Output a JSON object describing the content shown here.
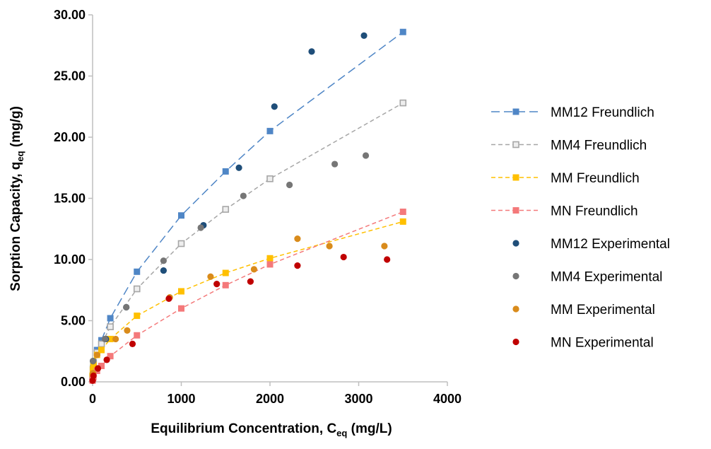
{
  "chart_data": {
    "type": "scatter",
    "xlim": [
      0,
      4000
    ],
    "ylim": [
      0,
      30
    ],
    "xticks": [
      0,
      1000,
      2000,
      3000,
      4000
    ],
    "xtick_labels": [
      "0",
      "1000",
      "2000",
      "3000",
      "4000"
    ],
    "yticks": [
      0,
      5,
      10,
      15,
      20,
      25,
      30
    ],
    "ytick_labels": [
      "0.00",
      "5.00",
      "10.00",
      "15.00",
      "20.00",
      "25.00",
      "30.00"
    ],
    "xlabel": {
      "main": "Equilibrium Concentration, C",
      "sub": "eq",
      "unit": " (mg/L)"
    },
    "ylabel": {
      "main": "Sorption Capacity, q",
      "sub": "eq",
      "unit": " (mg/g)"
    },
    "grid": false,
    "legend_position": "right",
    "series": [
      {
        "name": "MM12 Freundlich",
        "kind": "fit",
        "marker": "square",
        "color": "#4f86c6",
        "x": [
          0,
          5,
          10,
          50,
          100,
          200,
          500,
          1000,
          1500,
          2000,
          3500
        ],
        "y": [
          0.4,
          1.1,
          1.6,
          2.6,
          3.4,
          5.2,
          9.0,
          13.6,
          17.2,
          20.5,
          28.6
        ]
      },
      {
        "name": "MM4 Freundlich",
        "kind": "fit",
        "marker": "square-open",
        "color": "#a6a6a6",
        "x": [
          0,
          5,
          10,
          50,
          100,
          200,
          500,
          1000,
          1500,
          2000,
          3500
        ],
        "y": [
          0.4,
          1.0,
          1.5,
          2.4,
          3.1,
          4.5,
          7.6,
          11.3,
          14.1,
          16.6,
          22.8
        ]
      },
      {
        "name": "MM Freundlich",
        "kind": "fit",
        "marker": "square",
        "color": "#ffc000",
        "x": [
          0,
          5,
          10,
          50,
          100,
          200,
          500,
          1000,
          1500,
          2000,
          3500
        ],
        "y": [
          0.5,
          1.0,
          1.4,
          2.2,
          2.6,
          3.5,
          5.4,
          7.4,
          8.9,
          10.1,
          13.1
        ]
      },
      {
        "name": "MN Freundlich",
        "kind": "fit",
        "marker": "square",
        "color": "#f4797a",
        "x": [
          0,
          5,
          10,
          50,
          100,
          200,
          500,
          1000,
          1500,
          2000,
          3500
        ],
        "y": [
          0.1,
          0.3,
          0.4,
          0.9,
          1.3,
          2.1,
          3.8,
          6.0,
          7.9,
          9.6,
          13.9
        ]
      },
      {
        "name": "MM12 Experimental",
        "kind": "points",
        "marker": "circle",
        "color": "#1f4e79",
        "x": [
          5,
          150,
          380,
          800,
          1250,
          1650,
          2050,
          2470,
          3060
        ],
        "y": [
          1.7,
          3.5,
          6.1,
          9.1,
          12.8,
          17.5,
          22.5,
          27.0,
          28.3
        ]
      },
      {
        "name": "MM4 Experimental",
        "kind": "points",
        "marker": "circle",
        "color": "#767676",
        "x": [
          5,
          140,
          380,
          800,
          1220,
          1700,
          2220,
          2730,
          3080
        ],
        "y": [
          1.7,
          3.5,
          6.1,
          9.9,
          12.6,
          15.2,
          16.1,
          17.8,
          18.5
        ]
      },
      {
        "name": "MM Experimental",
        "kind": "points",
        "marker": "circle",
        "color": "#d98b1b",
        "x": [
          5,
          50,
          260,
          390,
          870,
          1330,
          1820,
          2310,
          2670,
          3290
        ],
        "y": [
          0.7,
          2.2,
          3.5,
          4.2,
          6.9,
          8.6,
          9.2,
          11.7,
          11.1,
          11.1
        ],
        "_comment": null
      },
      {
        "name": "MN Experimental",
        "kind": "points",
        "marker": "circle",
        "color": "#c00000",
        "x": [
          0,
          10,
          60,
          160,
          450,
          860,
          1400,
          1780,
          2310,
          2830,
          3320
        ],
        "y": [
          0.1,
          0.5,
          1.1,
          1.8,
          3.1,
          6.8,
          8.0,
          8.2,
          9.5,
          10.2,
          10.0
        ]
      }
    ]
  }
}
